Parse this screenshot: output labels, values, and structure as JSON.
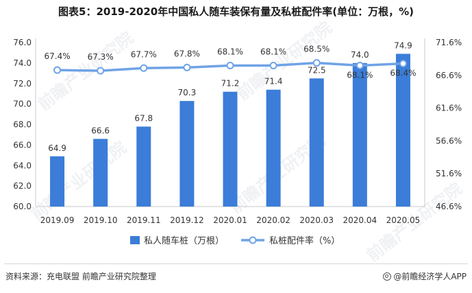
{
  "title": "图表5：2019-2020年中国私人随车装保有量及私桩配件率(单位：万根，%)",
  "source": "资料来源：充电联盟 前瞻产业研究院整理",
  "brand": "@前瞻经济学人APP",
  "watermark": "前瞻产业研究院",
  "colors": {
    "bar": "#3b7dd8",
    "line": "#6fa3e6",
    "axis": "#c8c8c8",
    "text": "#333333"
  },
  "chart_data": {
    "type": "bar",
    "categories": [
      "2019.09",
      "2019.10",
      "2019.11",
      "2019.12",
      "2020.01",
      "2020.02",
      "2020.03",
      "2020.04",
      "2020.05"
    ],
    "series": [
      {
        "name": "私人随车桩（万根）",
        "type": "bar",
        "axis": "left",
        "values": [
          64.9,
          66.6,
          67.8,
          70.3,
          71.2,
          71.4,
          72.5,
          74.0,
          74.9
        ],
        "labels": [
          "64.9",
          "66.6",
          "67.8",
          "70.3",
          "71.2",
          "71.4",
          "72.5",
          "74.0",
          "74.9"
        ]
      },
      {
        "name": "私桩配件率（%）",
        "type": "line",
        "axis": "right",
        "values": [
          67.4,
          67.3,
          67.7,
          67.8,
          68.1,
          68.1,
          68.5,
          68.1,
          68.4
        ],
        "labels": [
          "67.4%",
          "67.3%",
          "67.7%",
          "67.8%",
          "68.1%",
          "68.1%",
          "68.5%",
          "68.1%",
          "68.4%"
        ]
      }
    ],
    "y_left": {
      "ylim": [
        60.0,
        76.0
      ],
      "ticks": [
        "60.0",
        "62.0",
        "64.0",
        "66.0",
        "68.0",
        "70.0",
        "72.0",
        "74.0",
        "76.0"
      ]
    },
    "y_right": {
      "ylim": [
        46.6,
        71.6
      ],
      "ticks": [
        "46.6%",
        "51.6%",
        "56.6%",
        "61.6%",
        "66.6%",
        "71.6%"
      ]
    },
    "grid": false,
    "legend": "bottom-center"
  }
}
